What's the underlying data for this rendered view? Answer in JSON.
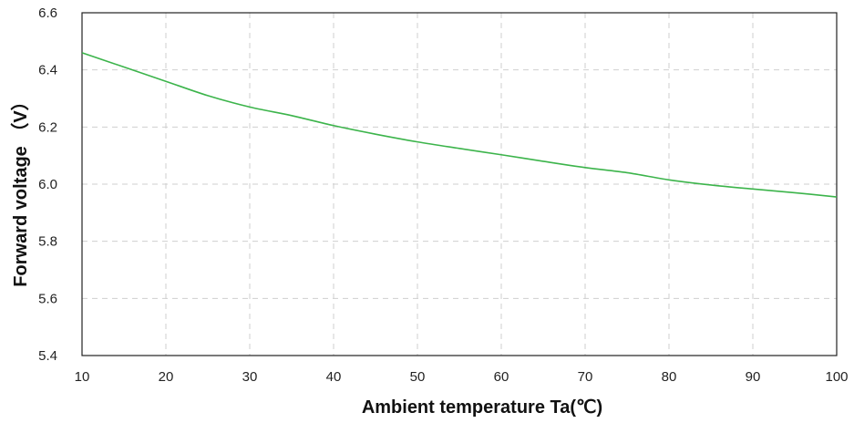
{
  "chart_data": {
    "type": "line",
    "xlabel": "Ambient temperature Ta(℃)",
    "ylabel": "Forward voltage （V）",
    "xlim": [
      10,
      100
    ],
    "ylim": [
      5.4,
      6.6
    ],
    "xticks": [
      10,
      20,
      30,
      40,
      50,
      60,
      70,
      80,
      90,
      100
    ],
    "yticks": [
      5.4,
      5.6,
      5.8,
      6.0,
      6.2,
      6.4,
      6.6
    ],
    "xtick_labels": [
      "10",
      "20",
      "30",
      "40",
      "50",
      "60",
      "70",
      "80",
      "90",
      "100"
    ],
    "ytick_labels": [
      "5.4",
      "5.6",
      "5.8",
      "6.0",
      "6.2",
      "6.4",
      "6.6"
    ],
    "grid": true,
    "grid_style": "dashed",
    "series": [
      {
        "color": "#3cb44b",
        "x": [
          10,
          15,
          20,
          25,
          30,
          35,
          40,
          45,
          50,
          55,
          60,
          65,
          70,
          75,
          80,
          85,
          90,
          95,
          100
        ],
        "y": [
          6.46,
          6.41,
          6.36,
          6.31,
          6.27,
          6.24,
          6.205,
          6.175,
          6.148,
          6.125,
          6.103,
          6.08,
          6.058,
          6.04,
          6.015,
          5.997,
          5.983,
          5.97,
          5.955
        ]
      }
    ]
  }
}
